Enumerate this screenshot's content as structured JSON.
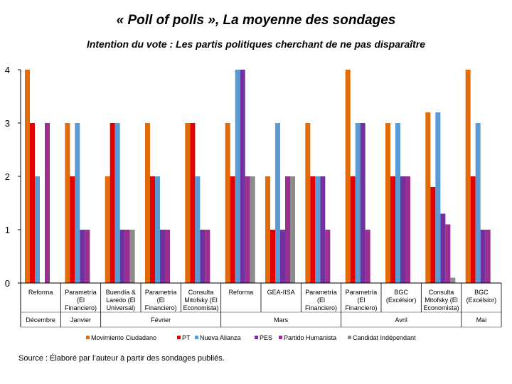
{
  "title": "« Poll of polls », La moyenne des sondages",
  "subtitle": "Intention du vote : Les partis politiques cherchant de ne pas disparaître",
  "source": "Source : Élaboré par l’auteur à partir des sondages publiés.",
  "chart_data": {
    "type": "bar",
    "ylim": [
      0,
      4
    ],
    "yticks": [
      "0",
      "1",
      "2",
      "3",
      "4"
    ],
    "grid": false,
    "legend_position": "bottom",
    "categories": [
      "Reforma",
      "Parametría (El Financiero)",
      "Buendía & Laredo (El Universal)",
      "Parametría (El Financiero)",
      "Consulta Mitofsky (El Economista)",
      "Reforma",
      "GEA-IISA",
      "Parametría (El Financiero)",
      "Parametría (El Financiero)",
      "BGC (Excélsior)",
      "Consulta Mitofsky (El Economista)",
      "BGC (Excélsior)"
    ],
    "category_lines": [
      [
        "Reforma"
      ],
      [
        "Parametría",
        "(El",
        "Financiero)"
      ],
      [
        "Buendía &",
        "Laredo (El",
        "Universal)"
      ],
      [
        "Parametría",
        "(El",
        "Financiero)"
      ],
      [
        "Consulta",
        "Mitofsky (El",
        "Economista)"
      ],
      [
        "Reforma"
      ],
      [
        "GEA-IISA"
      ],
      [
        "Parametría",
        "(El",
        "Financiero)"
      ],
      [
        "Parametría",
        "(El",
        "Financiero)"
      ],
      [
        "BGC",
        "(Excélsior)"
      ],
      [
        "Consulta",
        "Mitofsky (El",
        "Economista)"
      ],
      [
        "BGC",
        "(Excélsior)"
      ]
    ],
    "groups": [
      {
        "label": "Décembre",
        "start": 0,
        "end": 0
      },
      {
        "label": "Janvier",
        "start": 1,
        "end": 1
      },
      {
        "label": "Février",
        "start": 2,
        "end": 4
      },
      {
        "label": "Mars",
        "start": 5,
        "end": 7
      },
      {
        "label": "Avril",
        "start": 8,
        "end": 10
      },
      {
        "label": "Mai",
        "start": 11,
        "end": 11
      }
    ],
    "series": [
      {
        "name": "Movimiento Ciudadano",
        "color": "#e36c0a",
        "values": [
          4,
          3,
          2,
          3,
          3,
          3,
          2,
          3,
          4,
          3,
          3.2,
          4
        ]
      },
      {
        "name": "PT",
        "color": "#e30000",
        "values": [
          3,
          2,
          3,
          2,
          3,
          2,
          1,
          2,
          2,
          2,
          1.8,
          2
        ]
      },
      {
        "name": "Nueva Alianza",
        "color": "#5b9bd5",
        "values": [
          2,
          3,
          3,
          2,
          2,
          4,
          3,
          2,
          3,
          3,
          3.2,
          3
        ]
      },
      {
        "name": "PES",
        "color": "#7030a0",
        "values": [
          0,
          1,
          1,
          1,
          1,
          4,
          1,
          2,
          3,
          2,
          1.3,
          1
        ]
      },
      {
        "name": "Partido Humanista",
        "color": "#9b2f8f",
        "values": [
          3,
          1,
          1,
          1,
          1,
          2,
          2,
          1,
          1,
          2,
          1.1,
          1
        ]
      },
      {
        "name": "Candidat Indépendant",
        "color": "#8c8c8c",
        "values": [
          0,
          0,
          1,
          0,
          0,
          2,
          2,
          0,
          0,
          0,
          0.1,
          0
        ]
      }
    ]
  }
}
